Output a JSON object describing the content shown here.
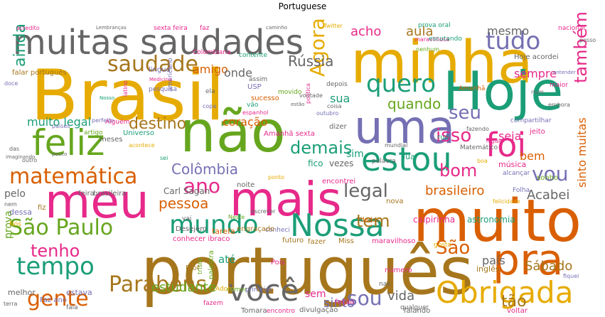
{
  "title": "Portuguese",
  "palette": {
    "green": "#1b9e77",
    "orange": "#d95f02",
    "purple": "#7570b3",
    "pink": "#e7298a",
    "lime": "#66a61e",
    "gold": "#e6ab02",
    "brown": "#a6761d",
    "gray": "#666666"
  },
  "words": [
    {
      "text": "Brasil",
      "color": "gold"
    },
    {
      "text": "português",
      "color": "brown"
    },
    {
      "text": "muito",
      "color": "orange"
    },
    {
      "text": "minha",
      "color": "gold"
    },
    {
      "text": "não",
      "color": "lime"
    },
    {
      "text": "Hoje",
      "color": "green"
    },
    {
      "text": "uma",
      "color": "purple"
    },
    {
      "text": "meu",
      "color": "pink"
    },
    {
      "text": "mais",
      "color": "pink"
    },
    {
      "text": "muitas saudades",
      "color": "gray"
    },
    {
      "text": "feliz",
      "color": "lime"
    },
    {
      "text": "pra",
      "color": "orange"
    },
    {
      "text": "estou",
      "color": "green"
    },
    {
      "text": "Nossa",
      "color": "green"
    },
    {
      "text": "mundo",
      "color": "green"
    },
    {
      "text": "matemática",
      "color": "orange"
    },
    {
      "text": "tempo",
      "color": "green"
    },
    {
      "text": "Obrigada",
      "color": "gold"
    },
    {
      "text": "você",
      "color": "gray"
    },
    {
      "text": "São Paulo",
      "color": "lime"
    },
    {
      "text": "foi",
      "color": "pink"
    },
    {
      "text": "quero",
      "color": "green"
    },
    {
      "text": "tudo",
      "color": "purple"
    },
    {
      "text": "Agora",
      "color": "gold"
    },
    {
      "text": "saudade",
      "color": "brown"
    },
    {
      "text": "ano",
      "color": "pink"
    },
    {
      "text": "Parabéns",
      "color": "brown"
    },
    {
      "text": "gente",
      "color": "orange"
    },
    {
      "text": "sou",
      "color": "purple"
    },
    {
      "text": "também",
      "color": "pink"
    },
    {
      "text": "vou",
      "color": "purple"
    },
    {
      "text": "legal",
      "color": "gray"
    },
    {
      "text": "bom",
      "color": "pink"
    },
    {
      "text": "seu",
      "color": "purple"
    },
    {
      "text": "isso",
      "color": "pink"
    },
    {
      "text": "demais",
      "color": "green"
    },
    {
      "text": "tenho",
      "color": "pink"
    },
    {
      "text": "São",
      "color": "orange"
    },
    {
      "text": "Colômbia",
      "color": "purple"
    },
    {
      "text": "ainda",
      "color": "green"
    },
    {
      "text": "destino",
      "color": "brown"
    },
    {
      "text": "tem",
      "color": "brown"
    },
    {
      "text": "quando",
      "color": "lime"
    },
    {
      "text": "Rússia",
      "color": "gray"
    },
    {
      "text": "brasileiro",
      "color": "orange"
    },
    {
      "text": "acho",
      "color": "pink"
    },
    {
      "text": "aula",
      "color": "brown"
    },
    {
      "text": "mesmo",
      "color": "gray"
    },
    {
      "text": "sempre",
      "color": "pink"
    },
    {
      "text": "amigo",
      "color": "orange"
    },
    {
      "text": "estudante",
      "color": "lime"
    },
    {
      "text": "pessoa",
      "color": "orange"
    },
    {
      "text": "muito legal",
      "color": "green"
    },
    {
      "text": "coração",
      "color": "orange"
    },
    {
      "text": "onde",
      "color": "gray"
    },
    {
      "text": "sua",
      "color": "green"
    },
    {
      "text": "seja",
      "color": "pink"
    },
    {
      "text": "bem",
      "color": "orange"
    },
    {
      "text": "Acabei",
      "color": "gray"
    },
    {
      "text": "Sábado",
      "color": "brown"
    },
    {
      "text": "país",
      "color": "gray"
    },
    {
      "text": "vida",
      "color": "gray"
    },
    {
      "text": "sinto",
      "color": "purple"
    },
    {
      "text": "sinto muitas",
      "color": "orange"
    },
    {
      "text": "tão",
      "color": "brown"
    },
    {
      "text": "prova",
      "color": "lime"
    },
    {
      "text": "sim",
      "color": "green"
    },
    {
      "text": "pelo",
      "color": "gray"
    },
    {
      "text": "até",
      "color": "green"
    },
    {
      "text": "sem",
      "color": "pink"
    },
    {
      "text": "Carl Sagan",
      "color": "gray"
    },
    {
      "text": "caipirinha",
      "color": "pink"
    },
    {
      "text": "astronomia",
      "color": "green"
    },
    {
      "text": "inglês",
      "color": "brown"
    },
    {
      "text": "Universo",
      "color": "green"
    },
    {
      "text": "meses",
      "color": "gray"
    },
    {
      "text": "artigo",
      "color": "lime"
    },
    {
      "text": "Alguém",
      "color": "pink"
    },
    {
      "text": "países",
      "color": "purple"
    },
    {
      "text": "perfeito",
      "color": "purple"
    },
    {
      "text": "Nosso",
      "color": "green"
    },
    {
      "text": "latino",
      "color": "pink"
    },
    {
      "text": "vezes",
      "color": "gray"
    },
    {
      "text": "fico",
      "color": "green"
    },
    {
      "text": "palavra",
      "color": "gray"
    },
    {
      "text": "lua",
      "color": "green"
    },
    {
      "text": "música",
      "color": "pink"
    },
    {
      "text": "alcançar",
      "color": "purple"
    },
    {
      "text": "sonho",
      "color": "lime"
    },
    {
      "text": "Folha",
      "color": "purple"
    },
    {
      "text": "felicidade",
      "color": "gold"
    },
    {
      "text": "nova",
      "color": "brown"
    },
    {
      "text": "dados",
      "color": "orange"
    },
    {
      "text": "Miss",
      "color": "brown"
    },
    {
      "text": "maravilhoso",
      "color": "pink"
    },
    {
      "text": "gosto",
      "color": "gold"
    },
    {
      "text": "futuro",
      "color": "brown"
    },
    {
      "text": "fazer",
      "color": "brown"
    },
    {
      "text": "conhecer ibraco",
      "color": "pink"
    },
    {
      "text": "conheci",
      "color": "purple"
    },
    {
      "text": "engraçado",
      "color": "brown"
    },
    {
      "text": "Neste",
      "color": "lime"
    },
    {
      "text": "escrever",
      "color": "gray"
    },
    {
      "text": "ponto",
      "color": "gold"
    },
    {
      "text": "noite",
      "color": "gray"
    },
    {
      "text": "encontrei",
      "color": "pink"
    },
    {
      "text": "tarefa",
      "color": "orange"
    },
    {
      "text": "Desejem",
      "color": "gray"
    },
    {
      "text": "vai",
      "color": "gray"
    },
    {
      "text": "feira",
      "color": "gray"
    },
    {
      "text": "brasileira",
      "color": "gray"
    },
    {
      "text": "dessa",
      "color": "purple"
    },
    {
      "text": "Nós",
      "color": "gold"
    },
    {
      "text": "nem",
      "color": "gray"
    },
    {
      "text": "fiz",
      "color": "brown"
    },
    {
      "text": "terra",
      "color": "gray"
    },
    {
      "text": "melhor",
      "color": "gray"
    },
    {
      "text": "estava",
      "color": "purple"
    },
    {
      "text": "palestra",
      "color": "lime"
    },
    {
      "text": "triste",
      "color": "lime"
    },
    {
      "text": "Prof",
      "color": "brown"
    },
    {
      "text": "Adoro",
      "color": "gold"
    },
    {
      "text": "comer",
      "color": "lime"
    },
    {
      "text": "primeiro",
      "color": "purple"
    },
    {
      "text": "fazem",
      "color": "pink"
    },
    {
      "text": "Faz ano",
      "color": "purple"
    },
    {
      "text": "fala",
      "color": "gray"
    },
    {
      "text": "Tomara",
      "color": "gray"
    },
    {
      "text": "encontro",
      "color": "pink"
    },
    {
      "text": "divulgação",
      "color": "gray"
    },
    {
      "text": "feijão",
      "color": "pink"
    },
    {
      "text": "número",
      "color": "pink"
    },
    {
      "text": "nas",
      "color": "gray"
    },
    {
      "text": "qualquer",
      "color": "gray"
    },
    {
      "text": "falando",
      "color": "gray"
    },
    {
      "text": "voltar",
      "color": "pink"
    },
    {
      "text": "fiquei",
      "color": "purple"
    },
    {
      "text": "Pois",
      "color": "pink"
    },
    {
      "text": "ter",
      "color": "brown"
    },
    {
      "text": "das",
      "color": "gray"
    },
    {
      "text": "outro",
      "color": "gray"
    },
    {
      "text": "pouco",
      "color": "gray"
    },
    {
      "text": "imaginando",
      "color": "gray"
    },
    {
      "text": "acontece",
      "color": "gold"
    },
    {
      "text": "sei",
      "color": "green"
    },
    {
      "text": "rua",
      "color": "green"
    },
    {
      "text": "Matemático",
      "color": "gray"
    },
    {
      "text": "compartilhar",
      "color": "purple"
    },
    {
      "text": "jeito",
      "color": "pink"
    },
    {
      "text": "fazendo",
      "color": "gray"
    },
    {
      "text": "região",
      "color": "pink"
    },
    {
      "text": "mundial",
      "color": "gray"
    },
    {
      "text": "Amanhã sexta",
      "color": "pink"
    },
    {
      "text": "outubro",
      "color": "purple"
    },
    {
      "text": "dizer",
      "color": "gray"
    },
    {
      "text": "depois",
      "color": "gray"
    },
    {
      "text": "coisa",
      "color": "gray"
    },
    {
      "text": "política",
      "color": "pink"
    },
    {
      "text": "estão",
      "color": "gray"
    },
    {
      "text": "movido",
      "color": "lime"
    },
    {
      "text": "USP",
      "color": "purple"
    },
    {
      "text": "sucesso",
      "color": "orange"
    },
    {
      "text": "assim",
      "color": "gray"
    },
    {
      "text": "vontade",
      "color": "gray"
    },
    {
      "text": "vão",
      "color": "green"
    },
    {
      "text": "espanhol",
      "color": "pink"
    },
    {
      "text": "copa",
      "color": "purple"
    },
    {
      "text": "ela",
      "color": "gray"
    },
    {
      "text": "americano",
      "color": "purple"
    },
    {
      "text": "pesquisa",
      "color": "purple"
    },
    {
      "text": "doce",
      "color": "purple"
    },
    {
      "text": "falar português",
      "color": "brown"
    },
    {
      "text": "lingua",
      "color": "purple"
    },
    {
      "text": "Medicina",
      "color": "pink"
    },
    {
      "text": "Colombiana",
      "color": "pink"
    },
    {
      "text": "contente",
      "color": "green"
    },
    {
      "text": "acredito",
      "color": "pink"
    },
    {
      "text": "Lembranças",
      "color": "gray"
    },
    {
      "text": "sexta feira",
      "color": "pink"
    },
    {
      "text": "faz",
      "color": "pink"
    },
    {
      "text": "caminho",
      "color": "gray"
    },
    {
      "text": "Twitter",
      "color": "gold"
    },
    {
      "text": "prova oral",
      "color": "green"
    },
    {
      "text": "maravilhosa",
      "color": "pink"
    },
    {
      "text": "escutando",
      "color": "green"
    },
    {
      "text": "Hoje acordei",
      "color": "gray"
    },
    {
      "text": "nacional",
      "color": "pink"
    },
    {
      "text": "posso",
      "color": "gray"
    },
    {
      "text": "nenhum",
      "color": "lime"
    },
    {
      "text": "maior",
      "color": "pink"
    },
    {
      "text": "num",
      "color": "gray"
    },
    {
      "text": "embora",
      "color": "gray"
    },
    {
      "text": "entender",
      "color": "purple"
    },
    {
      "text": "Amanhã",
      "color": "orange"
    },
    {
      "text": "boa",
      "color": "gold"
    }
  ]
}
